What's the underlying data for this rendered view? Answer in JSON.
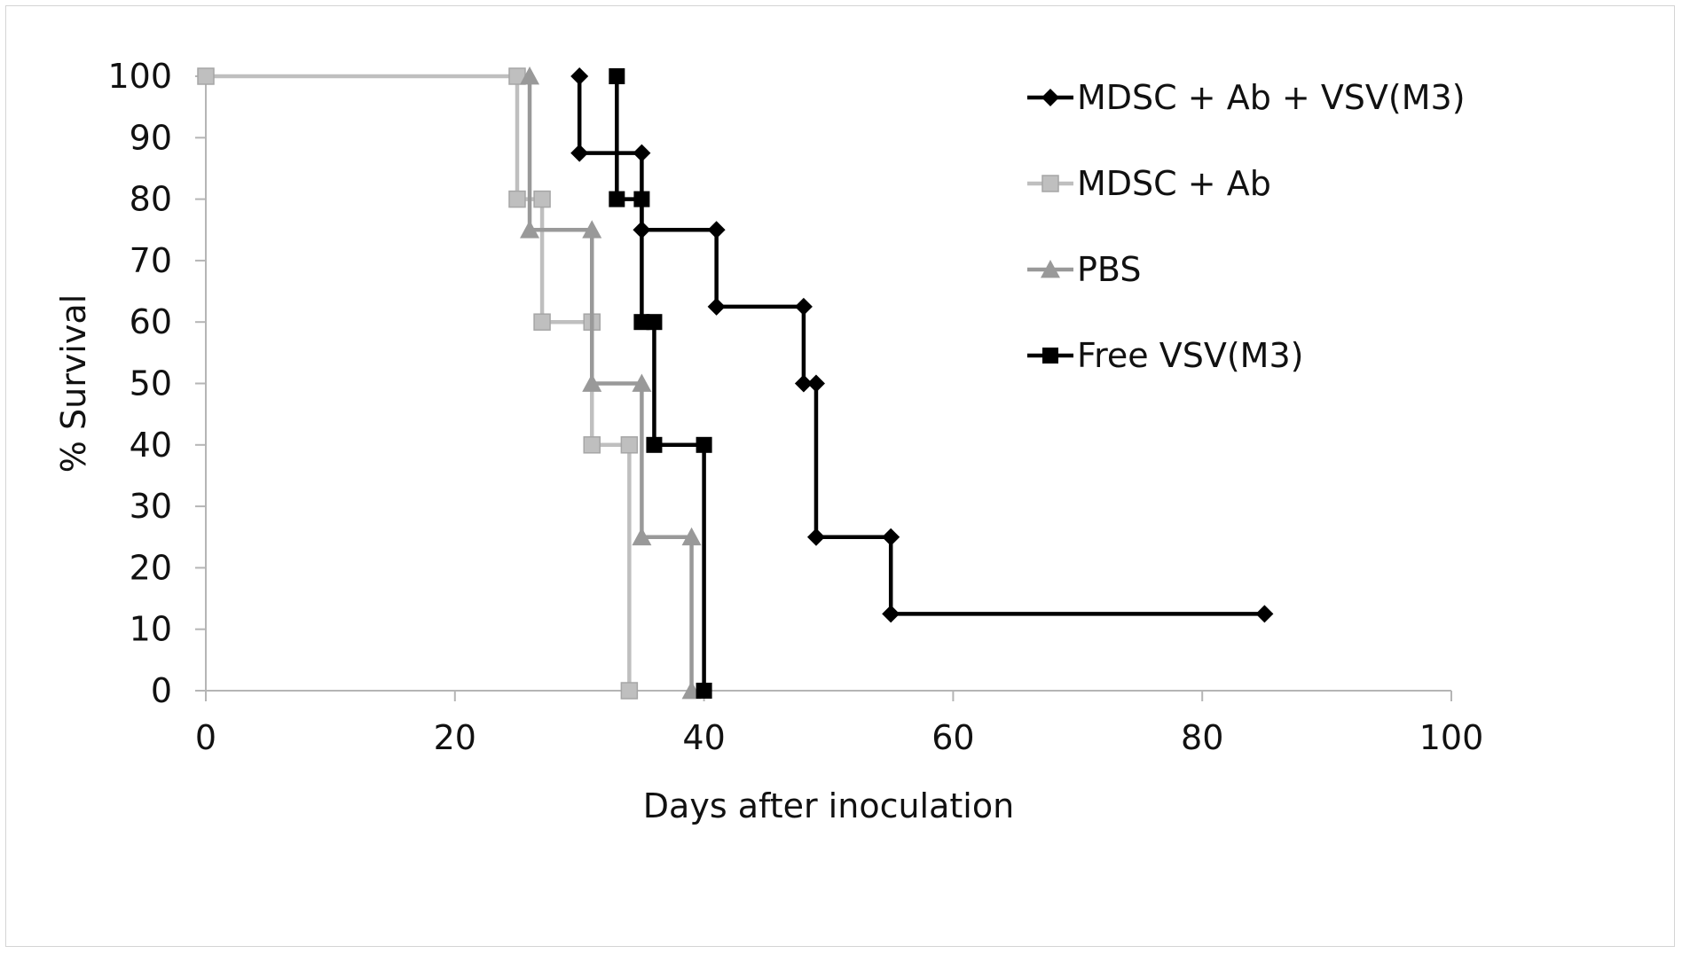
{
  "chart_data": {
    "type": "line",
    "title": "",
    "xlabel": "Days after inoculation",
    "ylabel": "% Survival",
    "xlim": [
      0,
      100
    ],
    "ylim": [
      0,
      100
    ],
    "x_ticks": [
      0,
      20,
      40,
      60,
      80,
      100
    ],
    "y_ticks": [
      0,
      10,
      20,
      30,
      40,
      50,
      60,
      70,
      80,
      90,
      100
    ],
    "grid": false,
    "legend_position": "top-right",
    "step": true,
    "series": [
      {
        "name": "MDSC + Ab + VSV(M3)",
        "color": "#000000",
        "marker": "diamond",
        "points": [
          [
            30,
            100
          ],
          [
            30,
            87.5
          ],
          [
            35,
            87.5
          ],
          [
            35,
            75
          ],
          [
            41,
            75
          ],
          [
            41,
            62.5
          ],
          [
            48,
            62.5
          ],
          [
            48,
            50
          ],
          [
            49,
            50
          ],
          [
            49,
            25
          ],
          [
            55,
            25
          ],
          [
            55,
            12.5
          ],
          [
            85,
            12.5
          ]
        ]
      },
      {
        "name": "MDSC + Ab",
        "color": "#bfbfbf",
        "marker": "square",
        "points": [
          [
            0,
            100
          ],
          [
            25,
            100
          ],
          [
            25,
            80
          ],
          [
            27,
            80
          ],
          [
            27,
            60
          ],
          [
            31,
            60
          ],
          [
            31,
            40
          ],
          [
            34,
            40
          ],
          [
            34,
            0
          ]
        ]
      },
      {
        "name": "PBS",
        "color": "#999999",
        "marker": "triangle",
        "points": [
          [
            26,
            100
          ],
          [
            26,
            75
          ],
          [
            31,
            75
          ],
          [
            31,
            50
          ],
          [
            35,
            50
          ],
          [
            35,
            25
          ],
          [
            39,
            25
          ],
          [
            39,
            0
          ]
        ]
      },
      {
        "name": "Free VSV(M3)",
        "color": "#000000",
        "marker": "square",
        "points": [
          [
            33,
            100
          ],
          [
            33,
            80
          ],
          [
            35,
            80
          ],
          [
            35,
            60
          ],
          [
            36,
            60
          ],
          [
            36,
            40
          ],
          [
            40,
            40
          ],
          [
            40,
            0
          ]
        ]
      }
    ]
  }
}
